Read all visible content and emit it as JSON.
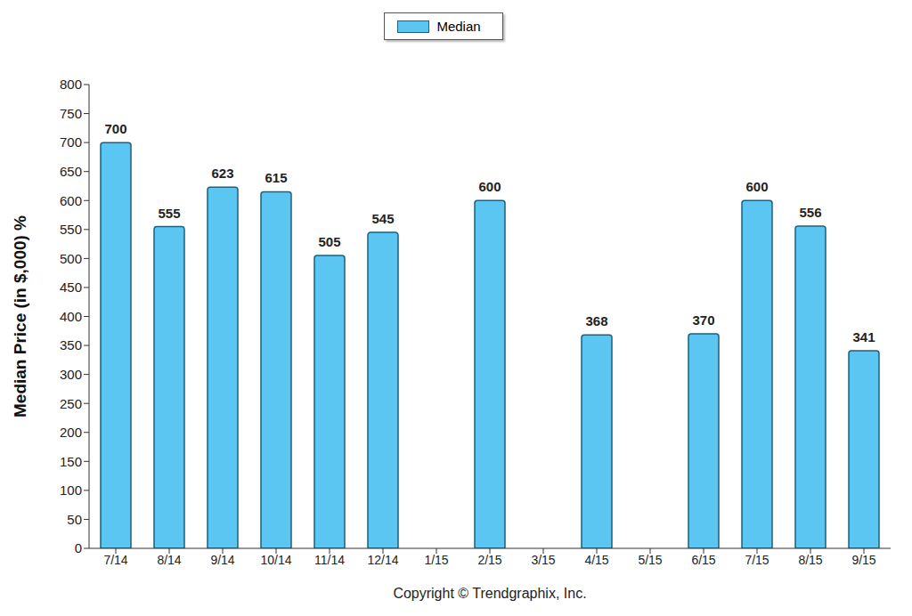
{
  "chart_data": {
    "type": "bar",
    "y_label": "Median Price (in $,000) %",
    "annotations": [
      "Copyright © Trendgraphix, Inc."
    ],
    "categories": [
      "7/14",
      "8/14",
      "9/14",
      "10/14",
      "11/14",
      "12/14",
      "1/15",
      "2/15",
      "3/15",
      "4/15",
      "5/15",
      "6/15",
      "7/15",
      "8/15",
      "9/15"
    ],
    "series": [
      {
        "name": "Median",
        "color": "#5cc6f2",
        "values": [
          700,
          555,
          623,
          615,
          505,
          545,
          0,
          600,
          0,
          368,
          0,
          370,
          600,
          556,
          341
        ]
      }
    ],
    "ylim": [
      0,
      800
    ],
    "yticks": [
      0,
      50,
      100,
      150,
      200,
      250,
      300,
      350,
      400,
      450,
      500,
      550,
      600,
      650,
      700,
      750,
      800
    ],
    "grid": false,
    "legend": "top",
    "data_labels": true
  }
}
